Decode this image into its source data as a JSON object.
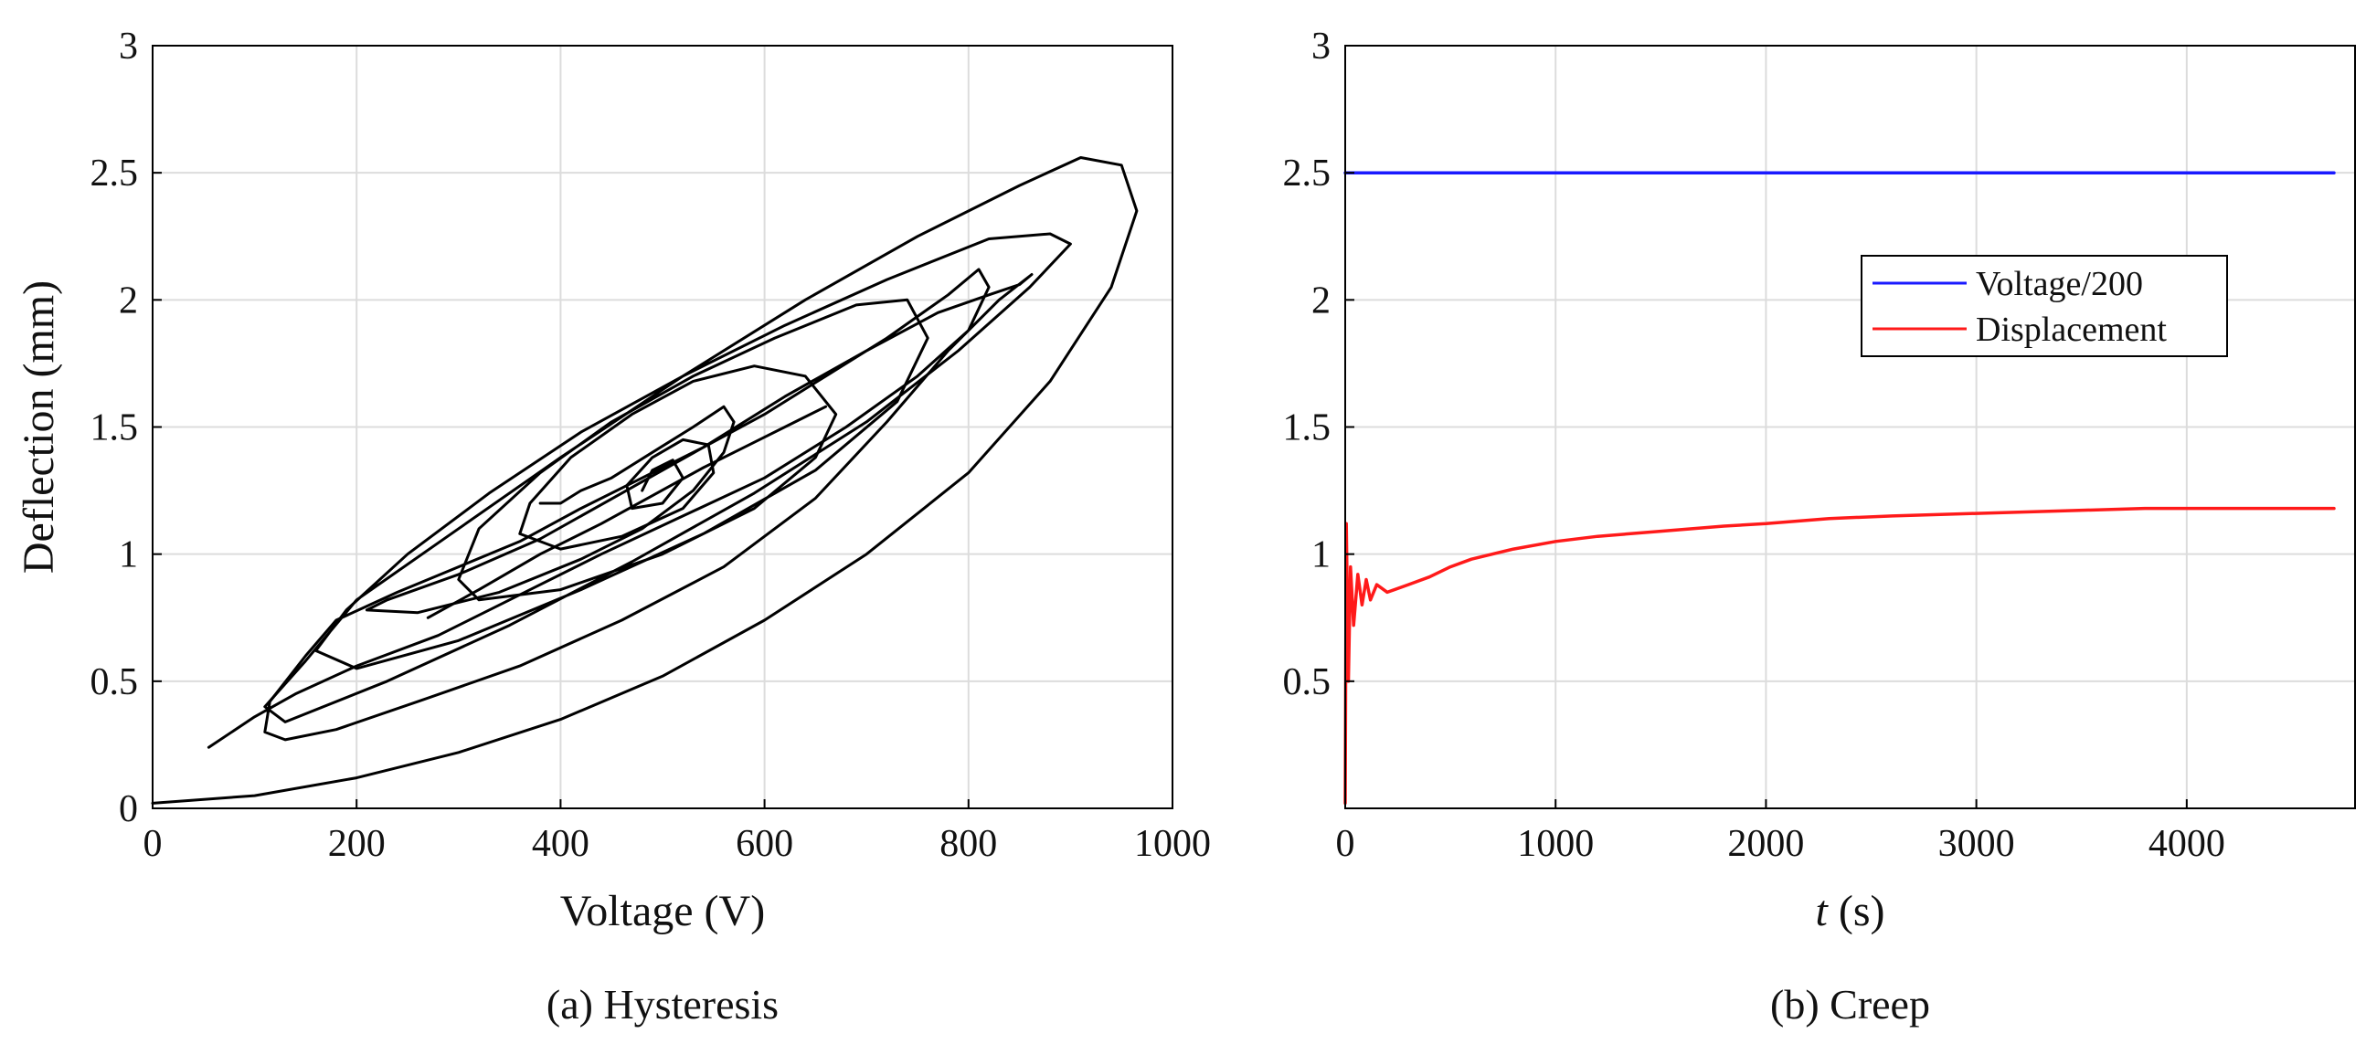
{
  "chart_data": [
    {
      "type": "line",
      "caption": "(a) Hysteresis",
      "xlabel": "Voltage (V)",
      "ylabel": "Deflection (mm)",
      "xlim": [
        0,
        1000
      ],
      "ylim": [
        0,
        3
      ],
      "xticks": [
        "0",
        "200",
        "400",
        "600",
        "800",
        "1000"
      ],
      "yticks": [
        "0",
        "0.5",
        "1",
        "1.5",
        "2",
        "2.5",
        "3"
      ],
      "grid": true,
      "series": [
        {
          "color": "#000000",
          "points": [
            [
              0,
              0.02
            ],
            [
              100,
              0.05
            ],
            [
              200,
              0.12
            ],
            [
              300,
              0.22
            ],
            [
              400,
              0.35
            ],
            [
              500,
              0.52
            ],
            [
              600,
              0.74
            ],
            [
              700,
              1.0
            ],
            [
              800,
              1.32
            ],
            [
              880,
              1.68
            ],
            [
              940,
              2.05
            ],
            [
              965,
              2.35
            ],
            [
              950,
              2.53
            ],
            [
              910,
              2.56
            ],
            [
              850,
              2.45
            ],
            [
              750,
              2.25
            ],
            [
              640,
              2.0
            ],
            [
              520,
              1.7
            ],
            [
              400,
              1.38
            ],
            [
              300,
              1.1
            ],
            [
              200,
              0.82
            ],
            [
              150,
              0.58
            ],
            [
              110,
              0.4
            ],
            [
              130,
              0.34
            ],
            [
              230,
              0.5
            ],
            [
              350,
              0.72
            ],
            [
              470,
              0.97
            ],
            [
              590,
              1.24
            ],
            [
              700,
              1.52
            ],
            [
              790,
              1.8
            ],
            [
              860,
              2.05
            ],
            [
              900,
              2.22
            ],
            [
              880,
              2.26
            ],
            [
              820,
              2.24
            ],
            [
              720,
              2.08
            ],
            [
              620,
              1.9
            ],
            [
              520,
              1.7
            ],
            [
              420,
              1.48
            ],
            [
              330,
              1.24
            ],
            [
              250,
              1.0
            ],
            [
              190,
              0.78
            ],
            [
              160,
              0.62
            ],
            [
              200,
              0.55
            ],
            [
              300,
              0.66
            ],
            [
              420,
              0.86
            ],
            [
              540,
              1.08
            ],
            [
              650,
              1.33
            ],
            [
              730,
              1.6
            ],
            [
              760,
              1.85
            ],
            [
              740,
              2.0
            ],
            [
              690,
              1.98
            ],
            [
              610,
              1.85
            ],
            [
              530,
              1.7
            ],
            [
              450,
              1.52
            ],
            [
              380,
              1.32
            ],
            [
              320,
              1.1
            ],
            [
              300,
              0.9
            ],
            [
              320,
              0.82
            ],
            [
              400,
              0.86
            ],
            [
              500,
              1.0
            ],
            [
              590,
              1.18
            ],
            [
              650,
              1.38
            ],
            [
              670,
              1.55
            ],
            [
              640,
              1.7
            ],
            [
              590,
              1.74
            ],
            [
              530,
              1.68
            ],
            [
              470,
              1.55
            ],
            [
              410,
              1.38
            ],
            [
              370,
              1.2
            ],
            [
              360,
              1.08
            ],
            [
              400,
              1.02
            ],
            [
              460,
              1.07
            ],
            [
              520,
              1.18
            ],
            [
              550,
              1.32
            ],
            [
              545,
              1.43
            ],
            [
              520,
              1.45
            ],
            [
              490,
              1.38
            ],
            [
              465,
              1.27
            ],
            [
              470,
              1.18
            ],
            [
              500,
              1.2
            ],
            [
              520,
              1.3
            ],
            [
              510,
              1.37
            ],
            [
              490,
              1.33
            ],
            [
              480,
              1.25
            ]
          ]
        },
        {
          "color": "#000000",
          "points": [
            [
              55,
              0.24
            ],
            [
              100,
              0.36
            ],
            [
              140,
              0.45
            ],
            [
              200,
              0.56
            ],
            [
              280,
              0.68
            ],
            [
              360,
              0.84
            ],
            [
              440,
              1.0
            ],
            [
              520,
              1.15
            ],
            [
              600,
              1.3
            ],
            [
              680,
              1.5
            ],
            [
              750,
              1.7
            ],
            [
              800,
              1.88
            ],
            [
              820,
              2.05
            ],
            [
              810,
              2.12
            ],
            [
              780,
              2.02
            ],
            [
              720,
              1.85
            ],
            [
              660,
              1.7
            ],
            [
              600,
              1.55
            ],
            [
              540,
              1.42
            ],
            [
              480,
              1.3
            ],
            [
              420,
              1.18
            ],
            [
              360,
              1.05
            ],
            [
              300,
              0.95
            ],
            [
              240,
              0.85
            ],
            [
              180,
              0.74
            ],
            [
              150,
              0.6
            ],
            [
              115,
              0.42
            ],
            [
              110,
              0.3
            ],
            [
              130,
              0.27
            ],
            [
              180,
              0.31
            ],
            [
              260,
              0.42
            ],
            [
              360,
              0.56
            ],
            [
              460,
              0.74
            ],
            [
              560,
              0.95
            ],
            [
              650,
              1.22
            ],
            [
              720,
              1.52
            ],
            [
              780,
              1.8
            ],
            [
              830,
              2.0
            ],
            [
              862,
              2.1
            ],
            [
              850,
              2.06
            ],
            [
              820,
              2.02
            ],
            [
              770,
              1.95
            ],
            [
              700,
              1.8
            ],
            [
              620,
              1.62
            ],
            [
              540,
              1.42
            ],
            [
              460,
              1.24
            ],
            [
              380,
              1.06
            ],
            [
              300,
              0.92
            ],
            [
              230,
              0.82
            ],
            [
              210,
              0.78
            ],
            [
              260,
              0.77
            ],
            [
              340,
              0.85
            ],
            [
              420,
              0.98
            ],
            [
              480,
              1.1
            ],
            [
              530,
              1.25
            ],
            [
              560,
              1.4
            ],
            [
              570,
              1.52
            ],
            [
              560,
              1.58
            ],
            [
              530,
              1.5
            ],
            [
              490,
              1.4
            ],
            [
              450,
              1.3
            ],
            [
              420,
              1.25
            ],
            [
              400,
              1.2
            ],
            [
              380,
              1.2
            ]
          ]
        },
        {
          "color": "#000000",
          "points": [
            [
              270,
              0.75
            ],
            [
              320,
              0.86
            ],
            [
              380,
              1.0
            ],
            [
              440,
              1.12
            ],
            [
              490,
              1.23
            ],
            [
              540,
              1.34
            ],
            [
              590,
              1.44
            ],
            [
              630,
              1.52
            ],
            [
              660,
              1.58
            ]
          ]
        }
      ]
    },
    {
      "type": "line",
      "caption": "(b) Creep",
      "xlabel_italic": "t",
      "xlabel_rest": " (s)",
      "xlim": [
        0,
        4800
      ],
      "ylim": [
        0,
        3
      ],
      "xticks": [
        "0",
        "1000",
        "2000",
        "3000",
        "4000"
      ],
      "yticks": [
        "0.5",
        "1",
        "1.5",
        "2",
        "2.5",
        "3"
      ],
      "grid": true,
      "legend_position": "right",
      "series": [
        {
          "name": "Voltage/200",
          "color": "#1a1aff",
          "points": [
            [
              0,
              2.5
            ],
            [
              4700,
              2.5
            ]
          ]
        },
        {
          "name": "Displacement",
          "color": "#ff1a1a",
          "points": [
            [
              0,
              0.02
            ],
            [
              5,
              1.12
            ],
            [
              15,
              0.5
            ],
            [
              25,
              0.95
            ],
            [
              40,
              0.72
            ],
            [
              60,
              0.92
            ],
            [
              80,
              0.8
            ],
            [
              100,
              0.9
            ],
            [
              120,
              0.82
            ],
            [
              150,
              0.88
            ],
            [
              200,
              0.85
            ],
            [
              300,
              0.88
            ],
            [
              400,
              0.91
            ],
            [
              500,
              0.95
            ],
            [
              600,
              0.98
            ],
            [
              800,
              1.02
            ],
            [
              1000,
              1.05
            ],
            [
              1200,
              1.07
            ],
            [
              1500,
              1.09
            ],
            [
              1800,
              1.11
            ],
            [
              2000,
              1.12
            ],
            [
              2300,
              1.14
            ],
            [
              2600,
              1.15
            ],
            [
              3000,
              1.16
            ],
            [
              3400,
              1.17
            ],
            [
              3800,
              1.18
            ],
            [
              4200,
              1.18
            ],
            [
              4700,
              1.18
            ]
          ]
        }
      ]
    }
  ]
}
